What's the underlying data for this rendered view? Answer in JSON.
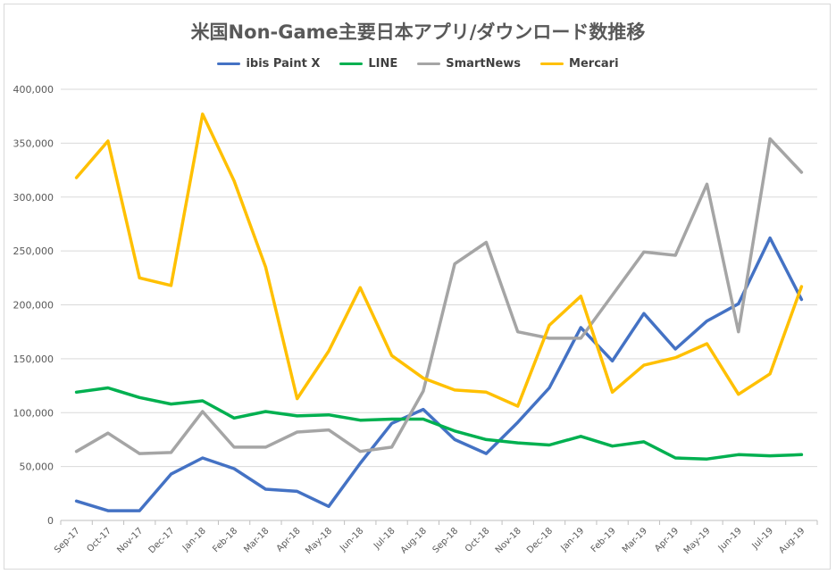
{
  "chart_data": {
    "type": "line",
    "title": "米国Non-Game主要日本アプリ/ダウンロード数推移",
    "xlabel": "",
    "ylabel": "",
    "ylim": [
      0,
      400000
    ],
    "yticks": [
      "0",
      "50,000",
      "100,000",
      "150,000",
      "200,000",
      "250,000",
      "300,000",
      "350,000",
      "400,000"
    ],
    "categories": [
      "Sep-17",
      "Oct-17",
      "Nov-17",
      "Dec-17",
      "Jan-18",
      "Feb-18",
      "Mar-18",
      "Apr-18",
      "May-18",
      "Jun-18",
      "Jul-18",
      "Aug-18",
      "Sep-18",
      "Oct-18",
      "Nov-18",
      "Dec-18",
      "Jan-19",
      "Feb-19",
      "Mar-19",
      "Apr-19",
      "May-19",
      "Jun-19",
      "Jul-19",
      "Aug-19"
    ],
    "legend_position": "top-center",
    "grid": true,
    "series": [
      {
        "name": "ibis Paint X",
        "color": "#4472c4",
        "values": [
          18000,
          9000,
          9000,
          43000,
          58000,
          48000,
          29000,
          27000,
          13000,
          53000,
          90000,
          103000,
          75000,
          62000,
          91000,
          123000,
          179000,
          148000,
          192000,
          159000,
          185000,
          201000,
          262000,
          205000
        ]
      },
      {
        "name": "LINE",
        "color": "#00b050",
        "values": [
          119000,
          123000,
          114000,
          108000,
          111000,
          95000,
          101000,
          97000,
          98000,
          93000,
          94000,
          94000,
          83000,
          75000,
          72000,
          70000,
          78000,
          69000,
          73000,
          58000,
          57000,
          61000,
          60000,
          61000
        ]
      },
      {
        "name": "SmartNews",
        "color": "#a5a5a5",
        "values": [
          64000,
          81000,
          62000,
          63000,
          101000,
          68000,
          68000,
          82000,
          84000,
          64000,
          68000,
          120000,
          238000,
          258000,
          175000,
          169000,
          169000,
          209000,
          249000,
          246000,
          312000,
          175000,
          354000,
          323000
        ]
      },
      {
        "name": "Mercari",
        "color": "#ffc000",
        "values": [
          318000,
          352000,
          225000,
          218000,
          377000,
          315000,
          235000,
          113000,
          157000,
          216000,
          153000,
          132000,
          121000,
          119000,
          106000,
          181000,
          208000,
          119000,
          144000,
          151000,
          164000,
          117000,
          136000,
          217000
        ]
      }
    ]
  }
}
